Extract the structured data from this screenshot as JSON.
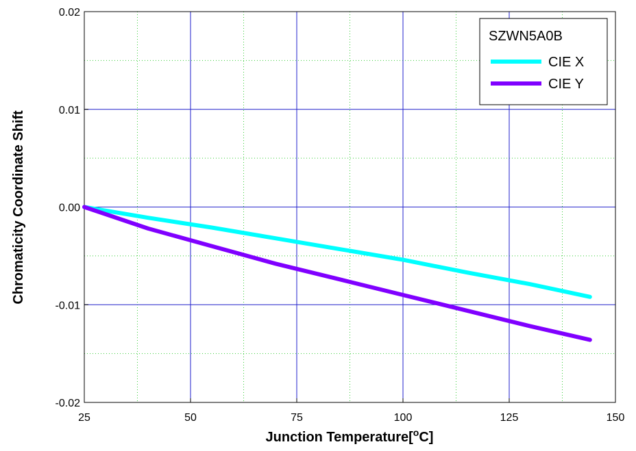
{
  "chart_data": {
    "type": "line",
    "title": "",
    "xlabel": "Junction Temperature[",
    "xlabel_sup": "o",
    "xlabel_suffix": "C]",
    "ylabel": "Chromaticity Coordinate Shift",
    "xlim": [
      25,
      150
    ],
    "ylim": [
      -0.02,
      0.02
    ],
    "x_ticks": [
      25,
      50,
      75,
      100,
      125,
      150
    ],
    "x_tick_labels": [
      "25",
      "50",
      "75",
      "100",
      "125",
      "150"
    ],
    "y_ticks": [
      -0.02,
      -0.01,
      0.0,
      0.01,
      0.02
    ],
    "y_tick_labels": [
      "-0.02",
      "-0.01",
      "0.00",
      "0.01",
      "0.02"
    ],
    "x_minor_ticks": [
      37.5,
      62.5,
      87.5,
      112.5,
      137.5
    ],
    "y_minor_ticks": [
      -0.015,
      -0.005,
      0.005,
      0.015
    ],
    "grid": true,
    "legend": {
      "placement": "top-right",
      "title": "SZWN5A0B"
    },
    "series": [
      {
        "name": "CIE X",
        "color": "#00FFFF",
        "x": [
          25,
          40,
          55,
          70,
          85,
          100,
          115,
          130,
          144
        ],
        "y": [
          0.0,
          -0.0011,
          -0.0021,
          -0.0032,
          -0.0043,
          -0.0054,
          -0.0067,
          -0.0079,
          -0.0092
        ]
      },
      {
        "name": "CIE Y",
        "color": "#8000FF",
        "x": [
          25,
          40,
          55,
          70,
          85,
          100,
          115,
          130,
          144
        ],
        "y": [
          0.0,
          -0.0022,
          -0.004,
          -0.0058,
          -0.0074,
          -0.009,
          -0.0106,
          -0.0122,
          -0.0136
        ]
      }
    ]
  }
}
